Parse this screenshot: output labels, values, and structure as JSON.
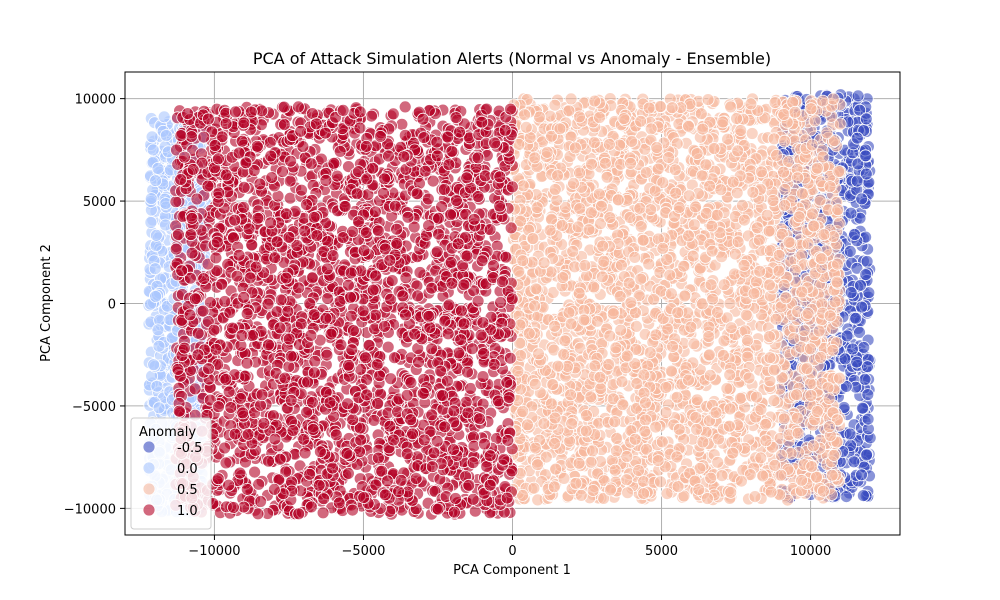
{
  "chart_data": {
    "type": "scatter",
    "title": "PCA of Attack Simulation Alerts (Normal vs Anomaly - Ensemble)",
    "xlabel": "PCA Component 1",
    "ylabel": "PCA Component 2",
    "xlim": [
      -13000,
      13000
    ],
    "ylim": [
      -11300,
      11300
    ],
    "x_ticks": [
      -10000,
      -5000,
      0,
      5000,
      10000
    ],
    "x_tick_labels": [
      "−10000",
      "−5000",
      "0",
      "5000",
      "10000"
    ],
    "y_ticks": [
      -10000,
      -5000,
      0,
      5000,
      10000
    ],
    "y_tick_labels": [
      "−10000",
      "−5000",
      "0",
      "5000",
      "10000"
    ],
    "grid": true,
    "legend": {
      "title": "Anomaly",
      "placement": "lower-left",
      "entries": [
        {
          "label": "-0.5",
          "color": "#3b4cc0"
        },
        {
          "label": "0.0",
          "color": "#aac7fd"
        },
        {
          "label": "0.5",
          "color": "#f7b89c"
        },
        {
          "label": "1.0",
          "color": "#b40426"
        }
      ]
    },
    "series": [
      {
        "name": "-0.5",
        "color": "#3b4cc0",
        "region_x": [
          9000,
          12000
        ],
        "region_y": [
          -9500,
          10200
        ]
      },
      {
        "name": "0.0",
        "color": "#aac7fd",
        "region_x": [
          -12200,
          -10300
        ],
        "region_y": [
          -10200,
          9200
        ]
      },
      {
        "name": "0.5",
        "color": "#f7b89c",
        "region_x": [
          0,
          11000
        ],
        "region_y": [
          -9600,
          10000
        ]
      },
      {
        "name": "1.0",
        "color": "#b40426",
        "region_x": [
          -11300,
          0
        ],
        "region_y": [
          -10300,
          9600
        ]
      }
    ]
  }
}
